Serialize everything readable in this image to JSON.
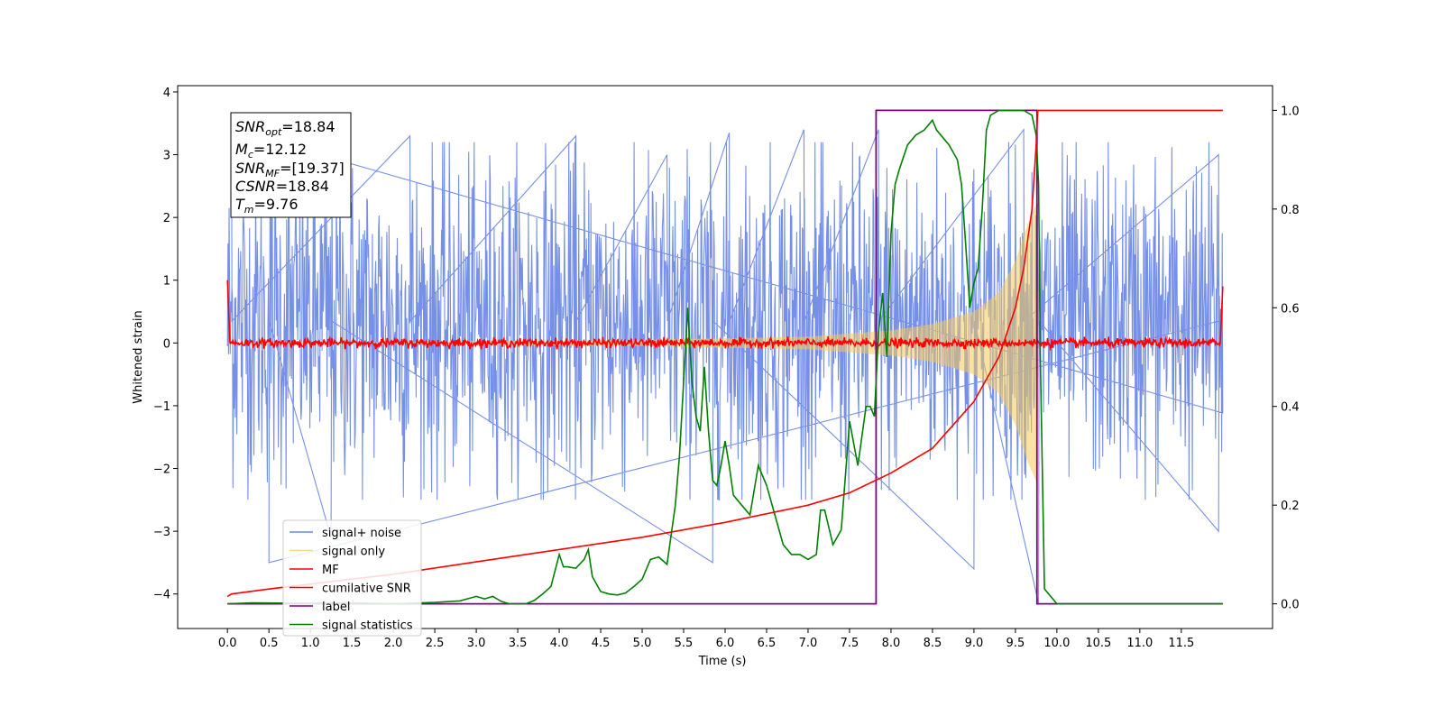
{
  "chart_data": {
    "type": "line",
    "xlabel": "Time (s)",
    "ylabel": "Whitened strain",
    "xlim": [
      -0.6,
      12.6
    ],
    "ylim": [
      -4.55,
      4.1
    ],
    "ylim_right": [
      -0.05,
      1.05
    ],
    "x_ticks": [
      0.0,
      0.5,
      1.0,
      1.5,
      2.0,
      2.5,
      3.0,
      3.5,
      4.0,
      4.5,
      5.0,
      5.5,
      6.0,
      6.5,
      7.0,
      7.5,
      8.0,
      8.5,
      9.0,
      9.5,
      10.0,
      10.5,
      11.0,
      11.5
    ],
    "x_tick_labels": [
      "0.0",
      "0.5",
      "1.0",
      "1.5",
      "2.0",
      "2.5",
      "3.0",
      "3.5",
      "4.0",
      "4.5",
      "5.0",
      "5.5",
      "6.0",
      "6.5",
      "7.0",
      "7.5",
      "8.0",
      "8.5",
      "9.0",
      "9.5",
      "10.0",
      "10.5",
      "11.0",
      "11.5"
    ],
    "y_ticks": [
      4,
      3,
      2,
      1,
      0,
      -1,
      -2,
      -3,
      -4
    ],
    "y_tick_labels": [
      "4",
      "3",
      "2",
      "1",
      "0",
      "−1",
      "−2",
      "−3",
      "−4"
    ],
    "y_right_ticks": [
      1.0,
      0.8,
      0.6,
      0.4,
      0.2,
      0.0
    ],
    "y_right_tick_labels": [
      "1.0",
      "0.8",
      "0.6",
      "0.4",
      "0.2",
      "0.0"
    ],
    "grid": false,
    "legend_position": "bottom-left",
    "series": [
      {
        "name": "signal+ noise",
        "color": "#6a87e6",
        "axis": "left",
        "style": "noise band",
        "x_range": [
          0.0,
          12.0
        ],
        "typical_range": [
          -2.0,
          2.7
        ],
        "peaks_up": [
          [
            0.05,
            3.4
          ],
          [
            2.2,
            3.3
          ],
          [
            4.2,
            3.3
          ],
          [
            5.3,
            3.0
          ],
          [
            6.05,
            3.35
          ],
          [
            6.95,
            3.4
          ],
          [
            7.85,
            3.4
          ],
          [
            9.6,
            3.4
          ],
          [
            11.95,
            3.0
          ]
        ],
        "peaks_down": [
          [
            0.5,
            -3.5
          ],
          [
            1.25,
            -3.1
          ],
          [
            5.85,
            -3.5
          ],
          [
            9.0,
            -3.6
          ],
          [
            9.78,
            -4.15
          ],
          [
            11.95,
            -3.0
          ]
        ]
      },
      {
        "name": "signal only",
        "color": "#f5c85a",
        "axis": "left",
        "style": "chirp",
        "x_range": [
          0.0,
          9.78
        ],
        "amplitude_points": [
          [
            0.0,
            0.0
          ],
          [
            5.0,
            0.05
          ],
          [
            7.0,
            0.1
          ],
          [
            8.0,
            0.2
          ],
          [
            8.5,
            0.3
          ],
          [
            9.0,
            0.5
          ],
          [
            9.3,
            0.8
          ],
          [
            9.5,
            1.3
          ],
          [
            9.65,
            1.9
          ],
          [
            9.75,
            2.2
          ],
          [
            9.78,
            0.0
          ]
        ]
      },
      {
        "name": "MF",
        "color": "#ff0000",
        "axis": "left",
        "style": "noisy near zero",
        "x_range": [
          0.0,
          12.0
        ],
        "typical_range": [
          -0.1,
          0.15
        ],
        "endpoints": [
          [
            0.0,
            1.0
          ],
          [
            12.0,
            0.9
          ]
        ]
      },
      {
        "name": "cumilative SNR",
        "color": "#ff0000",
        "axis": "right",
        "x": [
          0.0,
          0.05,
          0.5,
          1.0,
          2.0,
          3.0,
          4.0,
          5.0,
          6.0,
          7.0,
          7.5,
          8.0,
          8.5,
          9.0,
          9.3,
          9.5,
          9.6,
          9.7,
          9.75,
          9.77,
          12.0
        ],
        "values": [
          0.015,
          0.02,
          0.03,
          0.04,
          0.06,
          0.085,
          0.11,
          0.135,
          0.165,
          0.2,
          0.225,
          0.265,
          0.315,
          0.41,
          0.5,
          0.6,
          0.68,
          0.8,
          0.93,
          1.0,
          1.0
        ]
      },
      {
        "name": "label",
        "color": "#800080",
        "axis": "right",
        "x": [
          0.0,
          7.82,
          7.82,
          9.76,
          9.76,
          12.0
        ],
        "values": [
          0.0,
          0.0,
          1.0,
          1.0,
          0.0,
          0.0
        ]
      },
      {
        "name": "signal statistics",
        "color": "#008000",
        "axis": "right",
        "x": [
          0.0,
          0.3,
          1.0,
          1.5,
          2.0,
          2.5,
          2.8,
          3.0,
          3.1,
          3.2,
          3.3,
          3.4,
          3.6,
          3.7,
          3.8,
          3.9,
          4.0,
          4.05,
          4.1,
          4.2,
          4.3,
          4.35,
          4.4,
          4.5,
          4.6,
          4.7,
          4.8,
          4.9,
          5.0,
          5.1,
          5.2,
          5.3,
          5.4,
          5.45,
          5.5,
          5.55,
          5.6,
          5.65,
          5.7,
          5.75,
          5.8,
          5.85,
          5.9,
          5.95,
          6.0,
          6.05,
          6.1,
          6.2,
          6.25,
          6.3,
          6.4,
          6.5,
          6.6,
          6.7,
          6.8,
          6.9,
          7.0,
          7.1,
          7.15,
          7.2,
          7.3,
          7.4,
          7.5,
          7.6,
          7.7,
          7.75,
          7.8,
          7.82,
          7.85,
          7.9,
          7.95,
          8.0,
          8.05,
          8.1,
          8.2,
          8.3,
          8.4,
          8.5,
          8.55,
          8.6,
          8.7,
          8.8,
          8.85,
          8.9,
          8.95,
          9.0,
          9.05,
          9.1,
          9.15,
          9.2,
          9.3,
          9.4,
          9.5,
          9.6,
          9.7,
          9.75,
          9.78,
          9.8,
          9.85,
          10.0,
          11.0,
          12.0
        ],
        "values": [
          0.0,
          0.002,
          0.001,
          0.002,
          0.0,
          0.003,
          0.006,
          0.015,
          0.01,
          0.015,
          0.005,
          0.0,
          0.0,
          0.007,
          0.02,
          0.035,
          0.1,
          0.075,
          0.075,
          0.072,
          0.09,
          0.11,
          0.055,
          0.025,
          0.02,
          0.018,
          0.022,
          0.035,
          0.05,
          0.09,
          0.095,
          0.08,
          0.2,
          0.3,
          0.45,
          0.6,
          0.45,
          0.38,
          0.35,
          0.48,
          0.35,
          0.25,
          0.24,
          0.28,
          0.33,
          0.28,
          0.22,
          0.2,
          0.19,
          0.18,
          0.28,
          0.24,
          0.18,
          0.12,
          0.1,
          0.1,
          0.09,
          0.1,
          0.19,
          0.19,
          0.12,
          0.15,
          0.37,
          0.28,
          0.4,
          0.4,
          0.38,
          0.45,
          0.55,
          0.63,
          0.5,
          0.75,
          0.85,
          0.88,
          0.93,
          0.95,
          0.96,
          0.98,
          0.96,
          0.95,
          0.93,
          0.9,
          0.85,
          0.73,
          0.6,
          0.65,
          0.68,
          0.8,
          0.96,
          0.99,
          1.0,
          1.0,
          1.0,
          1.0,
          0.99,
          0.95,
          0.85,
          0.5,
          0.03,
          0.0,
          0.0,
          0.0
        ]
      }
    ]
  },
  "info_box": {
    "snr_opt": {
      "main": "SNR",
      "sub": "opt",
      "value": "=18.84"
    },
    "mc": {
      "main": "M",
      "sub": "c",
      "value": "=12.12"
    },
    "snr_mf": {
      "main": "SNR",
      "sub": "MF",
      "value": "=[19.37]"
    },
    "csnr": {
      "main": "CSNR",
      "value": "=18.84"
    },
    "tm": {
      "main": "T",
      "sub": "m",
      "value": "=9.76"
    }
  }
}
